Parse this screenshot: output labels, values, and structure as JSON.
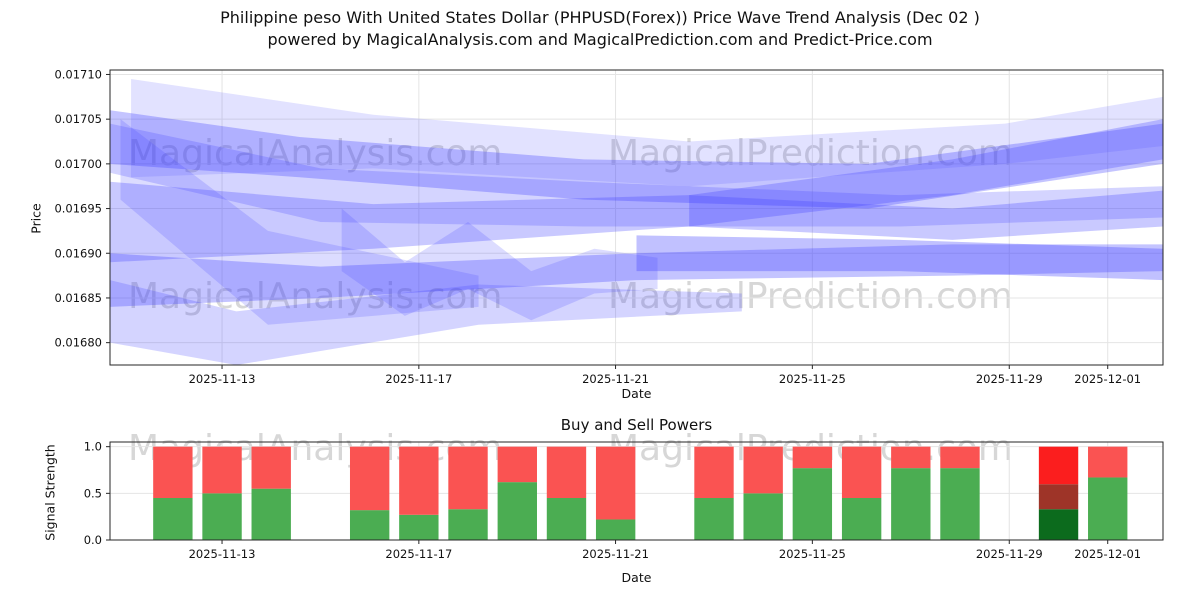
{
  "page": {
    "title": "Philippine peso With United States Dollar (PHPUSD(Forex)) Price Wave Trend Analysis (Dec 02 )",
    "subtitle": "powered by MagicalAnalysis.com and MagicalPrediction.com and Predict-Price.com"
  },
  "watermarks": {
    "left": "MagicalAnalysis.com",
    "right": "MagicalPrediction.com"
  },
  "chart_data": [
    {
      "type": "area",
      "name": "price-wave-trend",
      "xlabel": "Date",
      "ylabel": "Price",
      "ylim": [
        0.016775,
        0.017105
      ],
      "yticks": [
        0.0168,
        0.01685,
        0.0169,
        0.01695,
        0.017,
        0.01705,
        0.0171
      ],
      "ytick_labels": [
        "0.01680",
        "0.01685",
        "0.01690",
        "0.01695",
        "0.01700",
        "0.01705",
        "0.01710"
      ],
      "xtick_labels": [
        "2025-11-13",
        "2025-11-17",
        "2025-11-21",
        "2025-11-25",
        "2025-11-29",
        "2025-12-01"
      ],
      "xtick_pos": [
        0.1064,
        0.2933,
        0.4801,
        0.667,
        0.854,
        0.9475
      ],
      "grid": true,
      "legend": "none",
      "band_color": "#3d3dff",
      "bands": [
        {
          "x": [
            0.02,
            0.25,
            0.55,
            0.85,
            1.0
          ],
          "upper": [
            0.017095,
            0.017055,
            0.017025,
            0.017045,
            0.017075
          ],
          "lower": [
            0.016985,
            0.016995,
            0.016975,
            0.017,
            0.01702
          ],
          "opacity": 0.15
        },
        {
          "x": [
            0,
            0.18,
            0.45,
            0.72,
            1.0
          ],
          "upper": [
            0.01706,
            0.01703,
            0.017005,
            0.017,
            0.017045
          ],
          "lower": [
            0.017,
            0.016985,
            0.01696,
            0.01695,
            0.017
          ],
          "opacity": 0.3
        },
        {
          "x": [
            0,
            0.2,
            0.45,
            0.75,
            1.0
          ],
          "upper": [
            0.017045,
            0.016995,
            0.01698,
            0.016965,
            0.016975
          ],
          "lower": [
            0.01699,
            0.016935,
            0.01693,
            0.01693,
            0.01694
          ],
          "opacity": 0.22
        },
        {
          "x": [
            0,
            0.25,
            0.55,
            0.8,
            1.0
          ],
          "upper": [
            0.01698,
            0.016955,
            0.016965,
            0.01695,
            0.01697
          ],
          "lower": [
            0.01689,
            0.016905,
            0.01693,
            0.016915,
            0.01693
          ],
          "opacity": 0.28
        },
        {
          "x": [
            0,
            0.2,
            0.5,
            0.8,
            1.0
          ],
          "upper": [
            0.0169,
            0.016885,
            0.0169,
            0.01691,
            0.01691
          ],
          "lower": [
            0.01684,
            0.01685,
            0.01687,
            0.016875,
            0.01688
          ],
          "opacity": 0.3
        },
        {
          "x": [
            0,
            0.12,
            0.35,
            0.6
          ],
          "upper": [
            0.01687,
            0.016835,
            0.016865,
            0.016855
          ],
          "lower": [
            0.0168,
            0.016775,
            0.01682,
            0.016835
          ],
          "opacity": 0.22
        },
        {
          "x": [
            0.01,
            0.15,
            0.35
          ],
          "upper": [
            0.01705,
            0.016925,
            0.016875
          ],
          "lower": [
            0.01696,
            0.01682,
            0.01684
          ],
          "opacity": 0.18
        },
        {
          "x": [
            0.55,
            0.8,
            1.0
          ],
          "upper": [
            0.016965,
            0.017005,
            0.01705
          ],
          "lower": [
            0.01693,
            0.016965,
            0.017005
          ],
          "opacity": 0.28
        },
        {
          "x": [
            0.5,
            0.75,
            1.0
          ],
          "upper": [
            0.01692,
            0.016915,
            0.016905
          ],
          "lower": [
            0.01688,
            0.01688,
            0.01687
          ],
          "opacity": 0.32
        },
        {
          "x": [
            0.22,
            0.28,
            0.34,
            0.4,
            0.46,
            0.52
          ],
          "upper": [
            0.01695,
            0.01689,
            0.016935,
            0.01688,
            0.016905,
            0.016895
          ],
          "lower": [
            0.01688,
            0.01683,
            0.01686,
            0.016825,
            0.016855,
            0.01686
          ],
          "opacity": 0.18
        }
      ]
    },
    {
      "type": "bar",
      "name": "buy-sell-powers",
      "title": "Buy and Sell Powers",
      "xlabel": "Date",
      "ylabel": "Signal Strength",
      "ylim": [
        0,
        1.05
      ],
      "yticks": [
        0.0,
        0.5,
        1.0
      ],
      "ytick_labels": [
        "0.0",
        "0.5",
        "1.0"
      ],
      "xtick_labels": [
        "2025-11-13",
        "2025-11-17",
        "2025-11-21",
        "2025-11-25",
        "2025-11-29",
        "2025-12-01"
      ],
      "xtick_pos": [
        0.1064,
        0.2933,
        0.4801,
        0.667,
        0.854,
        0.9475
      ],
      "grid": true,
      "bar_width": 0.0374,
      "palette": {
        "buy": "#4bad52",
        "sell": "#fa5352",
        "alert_buy": "#0c6b1d",
        "alert_mid": "#9e3428",
        "alert_sell": "#fb1e1e"
      },
      "bars": [
        {
          "date": "2025-11-12",
          "x": 0.0597,
          "buy": 0.45,
          "sell": 0.55
        },
        {
          "date": "2025-11-13",
          "x": 0.1064,
          "buy": 0.5,
          "sell": 0.5
        },
        {
          "date": "2025-11-14",
          "x": 0.1531,
          "buy": 0.55,
          "sell": 0.45
        },
        {
          "date": "2025-11-16",
          "x": 0.2466,
          "buy": 0.32,
          "sell": 0.68
        },
        {
          "date": "2025-11-17",
          "x": 0.2933,
          "buy": 0.27,
          "sell": 0.73
        },
        {
          "date": "2025-11-18",
          "x": 0.34,
          "buy": 0.33,
          "sell": 0.67
        },
        {
          "date": "2025-11-19",
          "x": 0.3868,
          "buy": 0.62,
          "sell": 0.38
        },
        {
          "date": "2025-11-20",
          "x": 0.4335,
          "buy": 0.45,
          "sell": 0.55
        },
        {
          "date": "2025-11-21",
          "x": 0.4802,
          "buy": 0.22,
          "sell": 0.78
        },
        {
          "date": "2025-11-23",
          "x": 0.5736,
          "buy": 0.45,
          "sell": 0.55
        },
        {
          "date": "2025-11-24",
          "x": 0.6203,
          "buy": 0.5,
          "sell": 0.5
        },
        {
          "date": "2025-11-25",
          "x": 0.667,
          "buy": 0.77,
          "sell": 0.23
        },
        {
          "date": "2025-11-26",
          "x": 0.7138,
          "buy": 0.45,
          "sell": 0.55
        },
        {
          "date": "2025-11-27",
          "x": 0.7605,
          "buy": 0.77,
          "sell": 0.23
        },
        {
          "date": "2025-11-28",
          "x": 0.8072,
          "buy": 0.77,
          "sell": 0.23
        },
        {
          "date": "2025-11-30",
          "x": 0.9008,
          "buy": 0.33,
          "sell": 0.67,
          "alert": true
        },
        {
          "date": "2025-12-01",
          "x": 0.9475,
          "buy": 0.67,
          "sell": 0.33
        }
      ]
    }
  ]
}
